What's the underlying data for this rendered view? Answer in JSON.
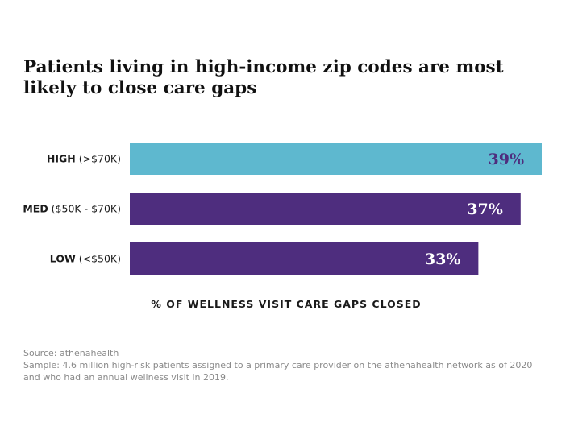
{
  "chart_data": {
    "type": "bar",
    "orientation": "horizontal",
    "title": "Patients living in high-income zip codes are most likely to close care gaps",
    "categories": [
      {
        "key": "HIGH",
        "range": "(>$70K)"
      },
      {
        "key": "MED",
        "range": "($50K - $70K)"
      },
      {
        "key": "LOW",
        "range": "(<$50K)"
      }
    ],
    "values": [
      39,
      37,
      33
    ],
    "value_labels": [
      "39%",
      "37%",
      "33%"
    ],
    "xlabel": "% OF WELLNESS VISIT CARE GAPS CLOSED",
    "ylabel": "",
    "xlim": [
      0,
      39
    ],
    "grid": false,
    "colors": {
      "highlight": "#5EB8CF",
      "default": "#4E2D7E",
      "label_on_highlight": "#4E2D7E",
      "label_on_default": "#ffffff"
    }
  },
  "footnote": {
    "source": "Source: athenahealth",
    "sample": "Sample: 4.6 million high-risk patients assigned to a primary care provider on the athenahealth network as of 2020 and who had an annual wellness visit in 2019."
  }
}
